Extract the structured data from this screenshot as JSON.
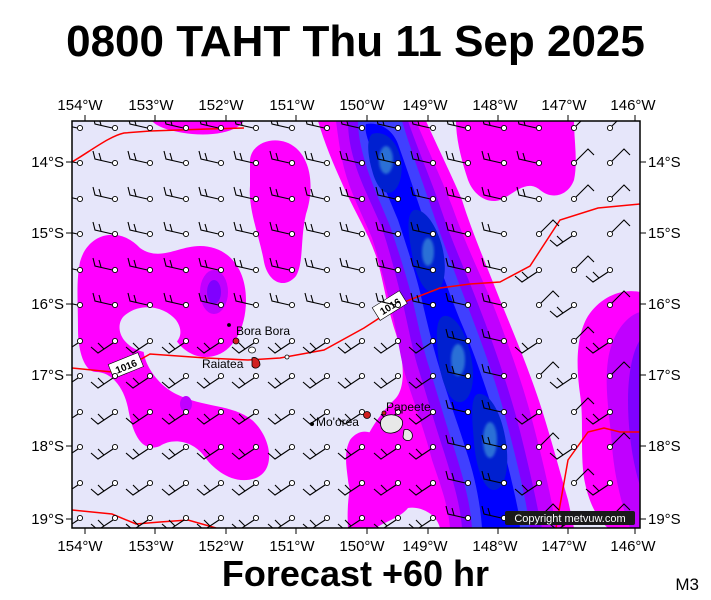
{
  "header": {
    "title": "0800 TAHT Thu 11 Sep 2025"
  },
  "footer": {
    "forecast": "Forecast +60 hr",
    "code": "M3"
  },
  "map": {
    "lon_labels": [
      "154°W",
      "153°W",
      "152°W",
      "151°W",
      "150°W",
      "149°W",
      "148°W",
      "147°W",
      "146°W"
    ],
    "lat_labels": [
      "14°S",
      "15°S",
      "16°S",
      "17°S",
      "18°S",
      "19°S"
    ],
    "colors": {
      "background": "#e6e6fa",
      "magenta": "#ff00ff",
      "violet": "#c000ff",
      "purple": "#8000ff",
      "indigo": "#4040ff",
      "blue": "#0000ff",
      "deep_blue": "#0020d0",
      "steel": "#2a6fd6",
      "isobar": "#ff0000",
      "coast": "#000000"
    },
    "isobar_labels": [
      "1016",
      "1016"
    ],
    "places": {
      "bora_bora": "Bora Bora",
      "raiatea": "Raiatea",
      "moorea": "Mo'orea",
      "papeete": "Papeete"
    },
    "copyright": "Copyright metvuw.com"
  }
}
